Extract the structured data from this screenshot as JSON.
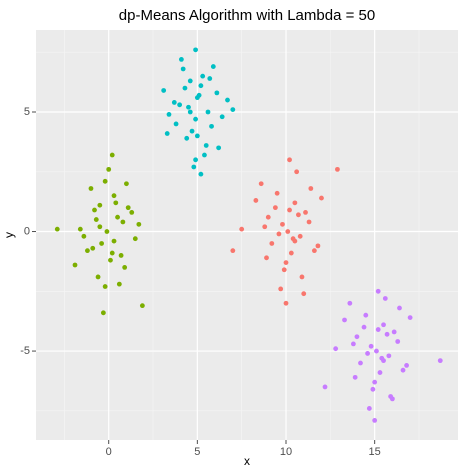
{
  "chart_data": {
    "type": "scatter",
    "title": "dp-Means Algorithm with Lambda = 50",
    "x_label": "x",
    "y_label": "y",
    "xlim": [
      -4.1,
      19.7
    ],
    "ylim": [
      -8.72,
      8.43
    ],
    "xticks": [
      0,
      5,
      10,
      15
    ],
    "yticks": [
      -5,
      0,
      5
    ],
    "x_minor_ticks": [
      -2.5,
      2.5,
      7.5,
      12.5,
      17.5
    ],
    "y_minor_ticks": [
      -7.5,
      -2.5,
      2.5,
      7.5
    ],
    "grid": true,
    "series": [
      {
        "color": "#7CAE00",
        "x": [
          -0.5,
          0.3,
          -1.2,
          0.8,
          1.5,
          -0.2,
          0.1,
          -0.8,
          0.6,
          -1.6,
          1.1,
          -0.4,
          0.2,
          0.9,
          -1.0,
          -2.9,
          1.9,
          -0.3,
          0.5,
          -0.6,
          0.0,
          1.3,
          -1.4,
          0.7,
          -0.1,
          0.4,
          -0.9,
          1.7,
          -0.7,
          0.2,
          -0.2,
          -0.5,
          0.3,
          -1.9,
          1.0
        ],
        "values": [
          0.2,
          1.5,
          -0.8,
          0.4,
          -0.3,
          2.1,
          -1.2,
          0.9,
          -2.2,
          0.1,
          1.0,
          -0.5,
          3.2,
          -1.5,
          1.8,
          0.1,
          -3.1,
          -3.4,
          0.6,
          -1.9,
          2.6,
          0.8,
          -0.2,
          -1.0,
          0.0,
          1.2,
          -0.7,
          0.3,
          0.5,
          -0.9,
          -2.3,
          1.1,
          -0.4,
          -1.4,
          2.0
        ]
      },
      {
        "color": "#00BFC4",
        "x": [
          4.5,
          5.2,
          3.8,
          6.1,
          5.0,
          4.2,
          5.6,
          3.4,
          6.7,
          4.9,
          5.4,
          4.0,
          5.8,
          4.6,
          5.1,
          3.1,
          6.4,
          4.8,
          5.3,
          4.4,
          5.9,
          3.7,
          4.9,
          5.5,
          7.0,
          4.3,
          5.0,
          4.7,
          6.2,
          4.1,
          5.2,
          3.3,
          4.6,
          5.7,
          4.9
        ],
        "values": [
          5.2,
          6.1,
          4.5,
          5.8,
          4.0,
          6.8,
          5.0,
          4.9,
          5.5,
          7.6,
          3.2,
          5.3,
          4.4,
          6.3,
          5.7,
          5.9,
          4.8,
          2.7,
          6.5,
          3.9,
          6.9,
          5.4,
          4.7,
          3.6,
          5.1,
          6.0,
          5.6,
          4.2,
          3.5,
          7.2,
          2.4,
          4.1,
          5.0,
          6.4,
          3.0
        ]
      },
      {
        "color": "#F8766D",
        "x": [
          9.8,
          10.5,
          9.2,
          11.1,
          10.0,
          8.6,
          10.8,
          9.5,
          11.6,
          10.2,
          9.0,
          10.9,
          7.5,
          12.0,
          10.3,
          9.7,
          11.3,
          8.9,
          10.6,
          10.1,
          9.4,
          11.8,
          10.4,
          7.0,
          12.9,
          9.9,
          10.7,
          8.3,
          11.0,
          10.2,
          9.6,
          10.0,
          11.4,
          8.8,
          10.5
        ],
        "values": [
          0.3,
          1.2,
          -0.5,
          0.8,
          -1.3,
          2.0,
          -0.2,
          1.6,
          -0.8,
          3.0,
          0.6,
          -1.9,
          0.1,
          1.4,
          -0.9,
          -2.4,
          0.4,
          -1.1,
          2.5,
          0.0,
          1.0,
          -0.6,
          -0.3,
          -0.8,
          2.6,
          -1.6,
          0.7,
          1.3,
          -2.6,
          0.9,
          -0.1,
          -3.0,
          1.8,
          0.2,
          -0.4
        ]
      },
      {
        "color": "#C77CFF",
        "x": [
          14.8,
          15.5,
          14.2,
          16.1,
          15.0,
          13.6,
          15.8,
          14.5,
          16.6,
          15.2,
          14.0,
          15.9,
          12.8,
          17.0,
          15.3,
          14.7,
          16.3,
          13.9,
          15.6,
          15.1,
          14.4,
          16.8,
          15.4,
          18.7,
          12.2,
          14.9,
          15.7,
          13.3,
          16.0,
          15.2,
          14.6,
          15.0,
          16.4,
          13.8,
          15.5
        ],
        "values": [
          -4.8,
          -3.9,
          -5.5,
          -4.2,
          -6.3,
          -3.0,
          -5.2,
          -3.5,
          -5.8,
          -2.5,
          -4.4,
          -6.9,
          -4.9,
          -3.6,
          -5.9,
          -7.4,
          -4.6,
          -6.1,
          -2.8,
          -5.0,
          -4.0,
          -5.6,
          -5.3,
          -5.4,
          -6.5,
          -6.6,
          -4.3,
          -3.7,
          -7.0,
          -4.1,
          -5.1,
          -7.9,
          -3.2,
          -4.7,
          -5.4
        ]
      }
    ]
  }
}
